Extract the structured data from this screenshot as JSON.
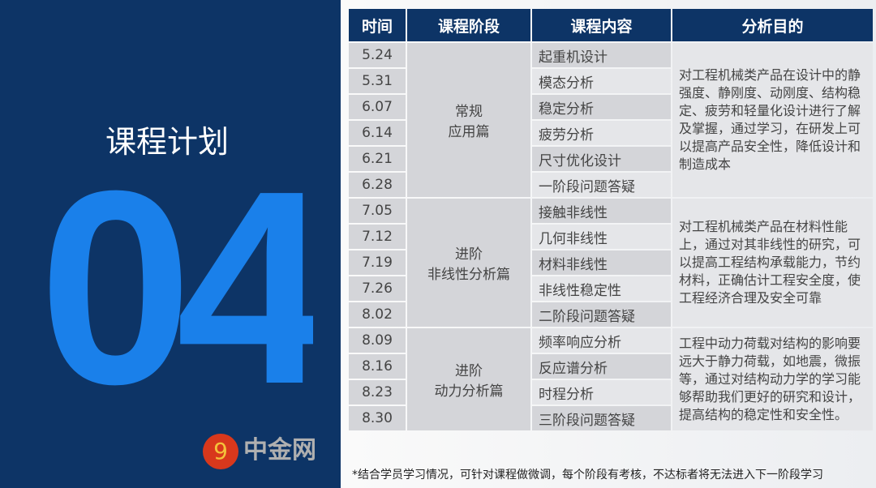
{
  "left": {
    "number": "04",
    "title": "课程计划"
  },
  "table": {
    "headers": [
      "时间",
      "课程阶段",
      "课程内容",
      "分析目的"
    ],
    "groups": [
      {
        "stage": [
          "常规",
          "应用篇"
        ],
        "purpose": "对工程机械类产品在设计中的静强度、静刚度、动刚度、结构稳定、疲劳和轻量化设计进行了解及掌握，通过学习，在研发上可以提高产品安全性，降低设计和制造成本",
        "rows": [
          {
            "time": "5.24",
            "content": "起重机设计"
          },
          {
            "time": "5.31",
            "content": "模态分析"
          },
          {
            "time": "6.07",
            "content": "稳定分析"
          },
          {
            "time": "6.14",
            "content": "疲劳分析"
          },
          {
            "time": "6.21",
            "content": "尺寸优化设计"
          },
          {
            "time": "6.28",
            "content": "一阶段问题答疑"
          }
        ]
      },
      {
        "stage": [
          "进阶",
          "非线性分析篇"
        ],
        "purpose": "对工程机械类产品在材料性能上，通过对其非线性的研究，可以提高工程结构承载能力，节约材料，正确估计工程安全度，使工程经济合理及安全可靠",
        "rows": [
          {
            "time": "7.05",
            "content": "接触非线性"
          },
          {
            "time": "7.12",
            "content": "几何非线性"
          },
          {
            "time": "7.19",
            "content": "材料非线性"
          },
          {
            "time": "7.26",
            "content": "非线性稳定性"
          },
          {
            "time": "8.02",
            "content": "二阶段问题答疑"
          }
        ]
      },
      {
        "stage": [
          "进阶",
          "动力分析篇"
        ],
        "purpose": "工程中动力荷载对结构的影响要远大于静力荷载，如地震，微振等，通过对结构动力学的学习能够帮助我们更好的研究和设计，提高结构的稳定性和安全性。",
        "rows": [
          {
            "time": "8.09",
            "content": "频率响应分析"
          },
          {
            "time": "8.16",
            "content": "反应谱分析"
          },
          {
            "time": "8.23",
            "content": "时程分析"
          },
          {
            "time": "8.30",
            "content": "三阶段问题答疑"
          }
        ]
      }
    ]
  },
  "note": "*结合学员学习情况，可针对课程做微调，每个阶段有考核，不达标者将无法进入下一阶段学习",
  "watermark": "中金网"
}
